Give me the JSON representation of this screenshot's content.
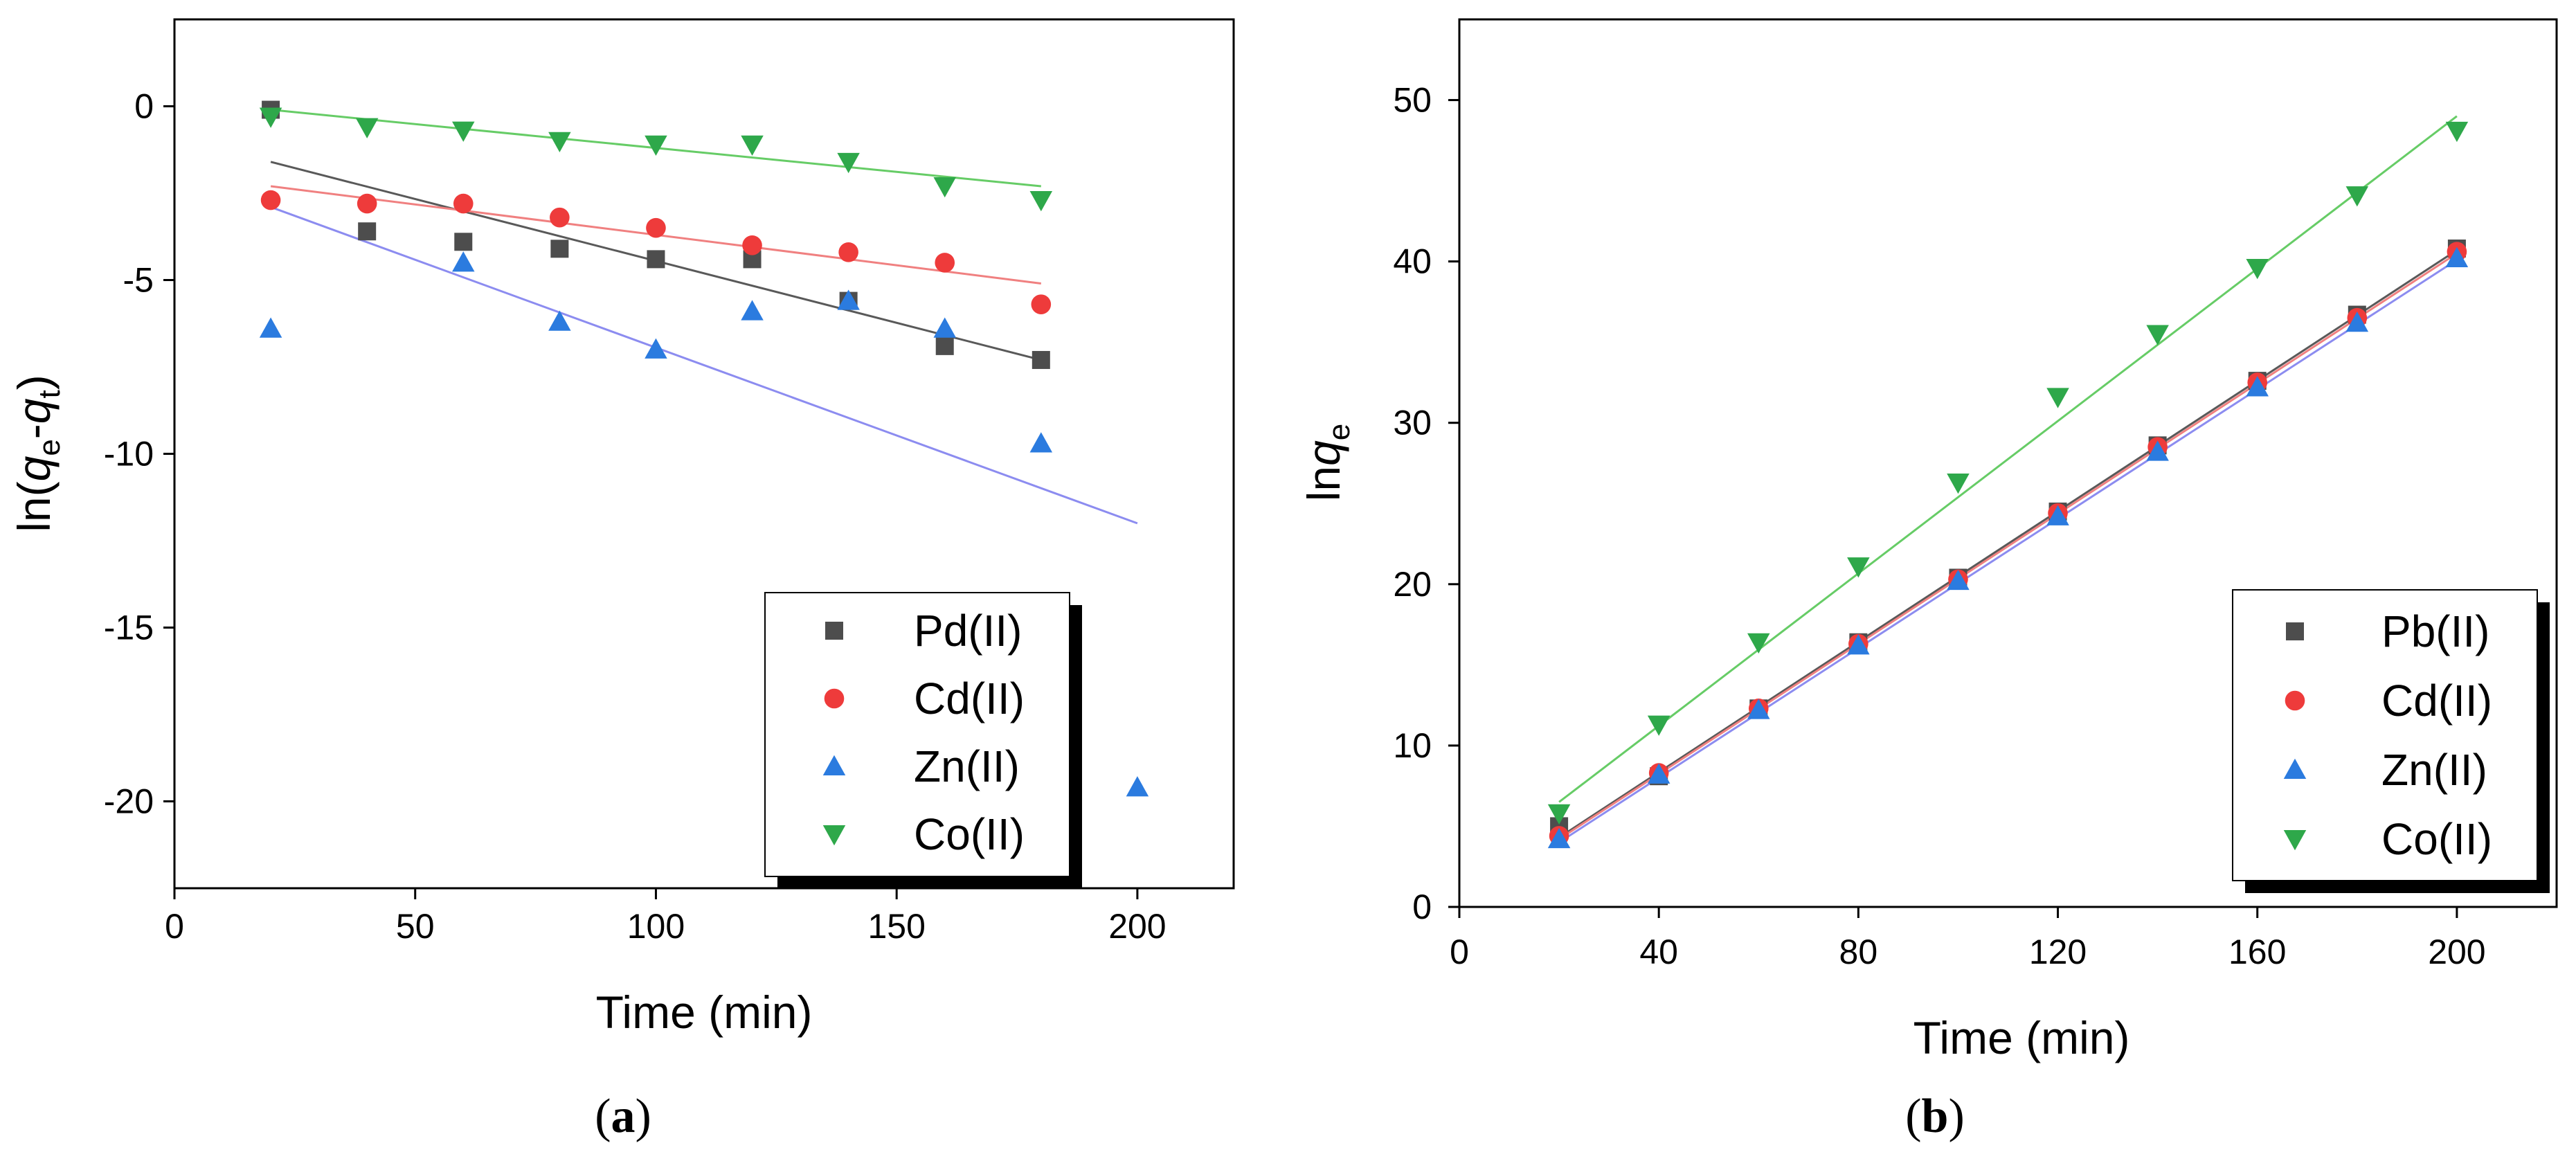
{
  "chart_data": [
    {
      "type": "scatter",
      "panel": "a",
      "caption": "a",
      "xlabel": "Time (min)",
      "ylabel": "ln(qe-qt)",
      "xlim": [
        0,
        220
      ],
      "ylim": [
        -22.5,
        2.5
      ],
      "xticks": [
        "0",
        "50",
        "100",
        "150",
        "200"
      ],
      "yticks": [
        "0",
        "-5",
        "-10",
        "-15",
        "-20"
      ],
      "legend_position": "bottom-right",
      "series": [
        {
          "name": "Pd(II)",
          "marker": "square",
          "color": "#4d4d4d",
          "line_color": "#595959",
          "x": [
            20,
            40,
            60,
            80,
            100,
            120,
            140,
            160,
            180
          ],
          "y": [
            -0.1,
            -3.6,
            -3.9,
            -4.1,
            -4.4,
            -4.4,
            -5.6,
            -6.9,
            -7.3
          ],
          "fit": [
            [
              20,
              -1.6
            ],
            [
              180,
              -7.3
            ]
          ]
        },
        {
          "name": "Cd(II)",
          "marker": "circle",
          "color": "#ee3b3b",
          "line_color": "#f08080",
          "x": [
            20,
            40,
            60,
            80,
            100,
            120,
            140,
            160,
            180
          ],
          "y": [
            -2.7,
            -2.8,
            -2.8,
            -3.2,
            -3.5,
            -4.0,
            -4.2,
            -4.5,
            -5.7
          ],
          "fit": [
            [
              20,
              -2.3
            ],
            [
              180,
              -5.1
            ]
          ]
        },
        {
          "name": "Zn(II)",
          "marker": "triangle-up",
          "color": "#2b7bdf",
          "line_color": "#8c8cf0",
          "x": [
            20,
            60,
            80,
            100,
            120,
            140,
            160,
            180,
            200
          ],
          "y": [
            -6.4,
            -4.5,
            -6.2,
            -7.0,
            -5.9,
            -5.6,
            -6.4,
            -9.7,
            -19.6
          ],
          "fit": [
            [
              20,
              -2.9
            ],
            [
              200,
              -12.0
            ]
          ]
        },
        {
          "name": "Co(II)",
          "marker": "triangle-down",
          "color": "#2ea84a",
          "line_color": "#66cc66",
          "x": [
            20,
            40,
            60,
            80,
            100,
            120,
            140,
            160,
            180
          ],
          "y": [
            -0.3,
            -0.6,
            -0.7,
            -1.0,
            -1.1,
            -1.1,
            -1.6,
            -2.3,
            -2.7
          ],
          "fit": [
            [
              20,
              -0.1
            ],
            [
              180,
              -2.3
            ]
          ]
        }
      ]
    },
    {
      "type": "scatter",
      "panel": "b",
      "caption": "b",
      "xlabel": "Time (min)",
      "ylabel": "lnqe",
      "xlim": [
        0,
        220
      ],
      "ylim": [
        0,
        55
      ],
      "xticks": [
        "0",
        "40",
        "80",
        "120",
        "160",
        "200"
      ],
      "yticks": [
        "0",
        "10",
        "20",
        "30",
        "40",
        "50"
      ],
      "legend_position": "bottom-right",
      "series": [
        {
          "name": "Pb(II)",
          "marker": "square",
          "color": "#4d4d4d",
          "line_color": "#595959",
          "x": [
            20,
            40,
            60,
            80,
            100,
            120,
            140,
            160,
            180,
            200
          ],
          "y": [
            5.0,
            8.1,
            12.3,
            16.4,
            20.4,
            24.5,
            28.6,
            32.6,
            36.7,
            40.8
          ],
          "fit": [
            [
              20,
              4.3
            ],
            [
              200,
              40.7
            ]
          ]
        },
        {
          "name": "Cd(II)",
          "marker": "circle",
          "color": "#ee3b3b",
          "line_color": "#f08080",
          "x": [
            20,
            40,
            60,
            80,
            100,
            120,
            140,
            160,
            180,
            200
          ],
          "y": [
            4.4,
            8.3,
            12.3,
            16.3,
            20.3,
            24.4,
            28.5,
            32.5,
            36.5,
            40.6
          ],
          "fit": [
            [
              20,
              4.2
            ],
            [
              200,
              40.5
            ]
          ]
        },
        {
          "name": "Zn(II)",
          "marker": "triangle-up",
          "color": "#2b7bdf",
          "line_color": "#8c8cf0",
          "x": [
            20,
            40,
            60,
            80,
            100,
            120,
            140,
            160,
            180,
            200
          ],
          "y": [
            4.2,
            8.2,
            12.2,
            16.2,
            20.2,
            24.2,
            28.2,
            32.2,
            36.2,
            40.2
          ],
          "fit": [
            [
              20,
              4.0
            ],
            [
              200,
              40.1
            ]
          ]
        },
        {
          "name": "Co(II)",
          "marker": "triangle-down",
          "color": "#2ea84a",
          "line_color": "#66cc66",
          "x": [
            20,
            40,
            60,
            80,
            100,
            120,
            140,
            160,
            180,
            200
          ],
          "y": [
            5.8,
            11.3,
            16.4,
            21.1,
            26.3,
            31.6,
            35.5,
            39.6,
            44.1,
            48.1
          ],
          "fit": [
            [
              20,
              6.5
            ],
            [
              200,
              49.0
            ]
          ]
        }
      ]
    }
  ]
}
